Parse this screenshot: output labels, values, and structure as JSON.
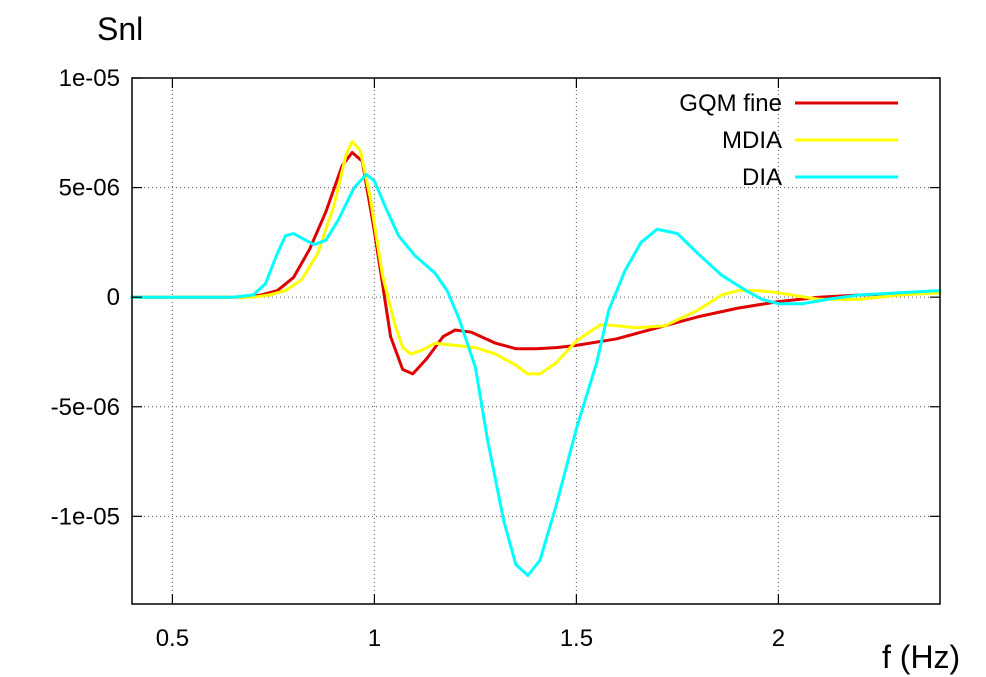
{
  "chart_data": {
    "type": "line",
    "title": "",
    "ylabel": "Snl",
    "xlabel": "f (Hz)",
    "xlim": [
      0.4,
      2.4
    ],
    "ylim": [
      -1.4e-05,
      1e-05
    ],
    "grid": true,
    "legend_position": "top-right",
    "x_ticks": [
      {
        "value": 0.5,
        "label": "0.5"
      },
      {
        "value": 1.0,
        "label": "1"
      },
      {
        "value": 1.5,
        "label": "1.5"
      },
      {
        "value": 2.0,
        "label": "2"
      }
    ],
    "y_ticks": [
      {
        "value": 1e-05,
        "label": "1e-05"
      },
      {
        "value": 5e-06,
        "label": "5e-06"
      },
      {
        "value": 0,
        "label": "0"
      },
      {
        "value": -5e-06,
        "label": "-5e-06"
      },
      {
        "value": -1e-05,
        "label": "-1e-05"
      }
    ],
    "series": [
      {
        "name": "GQM fine",
        "color": "#e00000",
        "points": [
          [
            0.4,
            0
          ],
          [
            0.6,
            0
          ],
          [
            0.68,
            0.0
          ],
          [
            0.72,
            1e-07
          ],
          [
            0.76,
            3e-07
          ],
          [
            0.8,
            9e-07
          ],
          [
            0.84,
            2.2e-06
          ],
          [
            0.88,
            3.9e-06
          ],
          [
            0.92,
            6e-06
          ],
          [
            0.945,
            6.6e-06
          ],
          [
            0.97,
            6.2e-06
          ],
          [
            1.0,
            3e-06
          ],
          [
            1.04,
            -1.8e-06
          ],
          [
            1.07,
            -3.3e-06
          ],
          [
            1.095,
            -3.5e-06
          ],
          [
            1.13,
            -2.8e-06
          ],
          [
            1.17,
            -1.8e-06
          ],
          [
            1.2,
            -1.5e-06
          ],
          [
            1.24,
            -1.6e-06
          ],
          [
            1.3,
            -2.1e-06
          ],
          [
            1.35,
            -2.35e-06
          ],
          [
            1.4,
            -2.35e-06
          ],
          [
            1.45,
            -2.3e-06
          ],
          [
            1.5,
            -2.2e-06
          ],
          [
            1.6,
            -1.9e-06
          ],
          [
            1.7,
            -1.4e-06
          ],
          [
            1.8,
            -9e-07
          ],
          [
            1.9,
            -5e-07
          ],
          [
            2.0,
            -2e-07
          ],
          [
            2.1,
            0.0
          ],
          [
            2.2,
            1e-07
          ],
          [
            2.3,
            1.5e-07
          ],
          [
            2.4,
            2e-07
          ]
        ]
      },
      {
        "name": "MDIA",
        "color": "#ffff00",
        "points": [
          [
            0.4,
            0
          ],
          [
            0.6,
            0
          ],
          [
            0.7,
            0.0
          ],
          [
            0.74,
            1e-07
          ],
          [
            0.78,
            3e-07
          ],
          [
            0.82,
            8e-07
          ],
          [
            0.86,
            2e-06
          ],
          [
            0.9,
            4.2e-06
          ],
          [
            0.93,
            6.5e-06
          ],
          [
            0.945,
            7.1e-06
          ],
          [
            0.965,
            6.7e-06
          ],
          [
            0.99,
            4.5e-06
          ],
          [
            1.02,
            1e-06
          ],
          [
            1.05,
            -1.2e-06
          ],
          [
            1.07,
            -2.3e-06
          ],
          [
            1.09,
            -2.6e-06
          ],
          [
            1.12,
            -2.4e-06
          ],
          [
            1.15,
            -2.1e-06
          ],
          [
            1.2,
            -2.2e-06
          ],
          [
            1.25,
            -2.3e-06
          ],
          [
            1.3,
            -2.6e-06
          ],
          [
            1.35,
            -3.1e-06
          ],
          [
            1.38,
            -3.5e-06
          ],
          [
            1.41,
            -3.5e-06
          ],
          [
            1.45,
            -3e-06
          ],
          [
            1.5,
            -2e-06
          ],
          [
            1.56,
            -1.25e-06
          ],
          [
            1.6,
            -1.3e-06
          ],
          [
            1.65,
            -1.4e-06
          ],
          [
            1.72,
            -1.3e-06
          ],
          [
            1.8,
            -6e-07
          ],
          [
            1.86,
            1e-07
          ],
          [
            1.9,
            3e-07
          ],
          [
            1.95,
            3e-07
          ],
          [
            2.0,
            2e-07
          ],
          [
            2.1,
            -1e-07
          ],
          [
            2.2,
            -1e-07
          ],
          [
            2.3,
            1e-07
          ],
          [
            2.4,
            2e-07
          ]
        ]
      },
      {
        "name": "DIA",
        "color": "#00ffff",
        "points": [
          [
            0.4,
            0
          ],
          [
            0.65,
            0
          ],
          [
            0.7,
            1e-07
          ],
          [
            0.73,
            6e-07
          ],
          [
            0.76,
            2e-06
          ],
          [
            0.78,
            2.8e-06
          ],
          [
            0.8,
            2.9e-06
          ],
          [
            0.83,
            2.6e-06
          ],
          [
            0.85,
            2.4e-06
          ],
          [
            0.88,
            2.6e-06
          ],
          [
            0.91,
            3.5e-06
          ],
          [
            0.95,
            5e-06
          ],
          [
            0.98,
            5.6e-06
          ],
          [
            1.0,
            5.3e-06
          ],
          [
            1.03,
            4e-06
          ],
          [
            1.06,
            2.8e-06
          ],
          [
            1.1,
            1.9e-06
          ],
          [
            1.15,
            1.1e-06
          ],
          [
            1.18,
            3e-07
          ],
          [
            1.21,
            -1e-06
          ],
          [
            1.25,
            -3.2e-06
          ],
          [
            1.28,
            -6.5e-06
          ],
          [
            1.32,
            -1.02e-05
          ],
          [
            1.35,
            -1.22e-05
          ],
          [
            1.38,
            -1.27e-05
          ],
          [
            1.41,
            -1.2e-05
          ],
          [
            1.45,
            -9.5e-06
          ],
          [
            1.5,
            -6e-06
          ],
          [
            1.55,
            -3e-06
          ],
          [
            1.58,
            -6e-07
          ],
          [
            1.62,
            1.2e-06
          ],
          [
            1.66,
            2.5e-06
          ],
          [
            1.7,
            3.1e-06
          ],
          [
            1.75,
            2.9e-06
          ],
          [
            1.8,
            2e-06
          ],
          [
            1.86,
            1e-06
          ],
          [
            1.92,
            3e-07
          ],
          [
            1.96,
            -1e-07
          ],
          [
            2.0,
            -3e-07
          ],
          [
            2.06,
            -3e-07
          ],
          [
            2.12,
            -1e-07
          ],
          [
            2.2,
            1e-07
          ],
          [
            2.3,
            2e-07
          ],
          [
            2.4,
            3e-07
          ]
        ]
      }
    ]
  }
}
